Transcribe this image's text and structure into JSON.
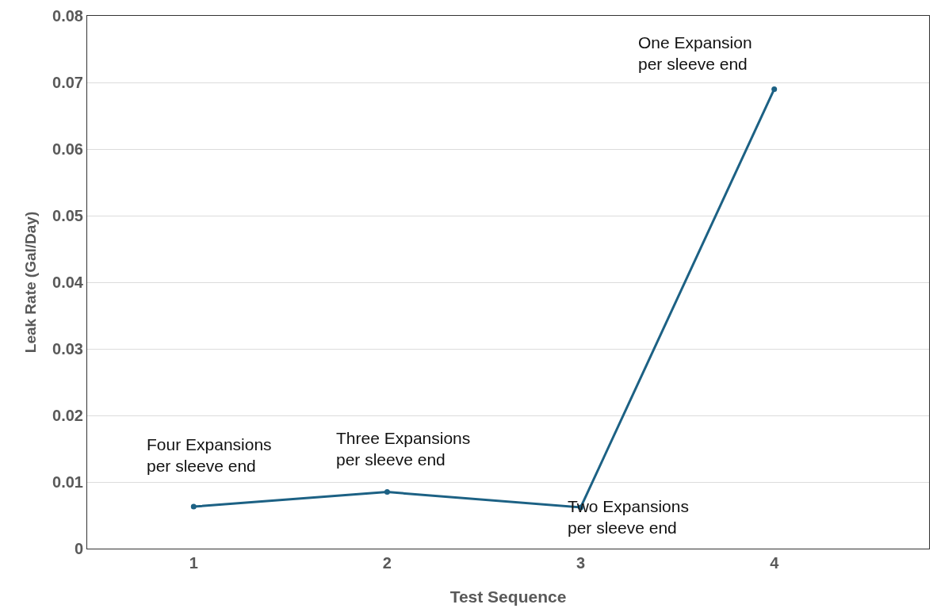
{
  "chart_data": {
    "type": "line",
    "xlabel": "Test Sequence",
    "ylabel": "Leak Rate (Gal/Day)",
    "categories": [
      "1",
      "2",
      "3",
      "4"
    ],
    "series": [
      {
        "color": "#1c6184",
        "values": [
          0.0063,
          0.0085,
          0.0062,
          0.069
        ]
      }
    ],
    "ylim": [
      0,
      0.08
    ],
    "yticks": [
      0,
      0.01,
      0.02,
      0.03,
      0.04,
      0.05,
      0.06,
      0.07,
      0.08
    ],
    "grid": "y",
    "marker": "circle",
    "line_style": "solid",
    "annotations": [
      {
        "text": "Four Expansions\nper sleeve end",
        "x": "1",
        "y": 0.0063
      },
      {
        "text": "Three Expansions\nper sleeve end",
        "x": "2",
        "y": 0.0085
      },
      {
        "text": "Two Expansions\nper sleeve end",
        "x": "3",
        "y": 0.0062
      },
      {
        "text": "One Expansion\nper sleeve end",
        "x": "4",
        "y": 0.069
      }
    ]
  }
}
